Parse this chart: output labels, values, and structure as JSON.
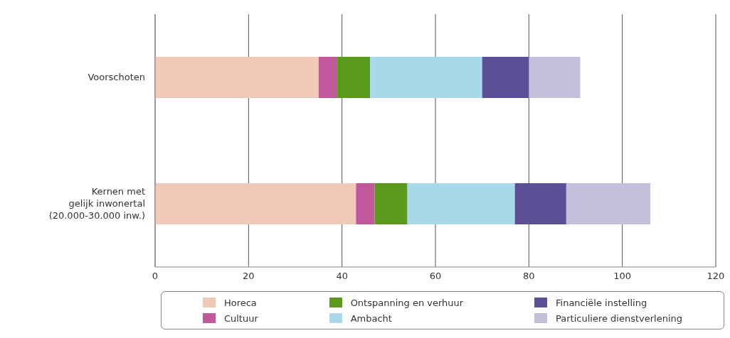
{
  "chart_data": {
    "type": "bar",
    "orientation": "horizontal",
    "stacked": true,
    "categories": [
      "Voorschoten",
      "Kernen met\ngelijk inwonertal\n(20.000-30.000 inw.)"
    ],
    "series": [
      {
        "name": "Horeca",
        "color": "#f2c9b8",
        "values": [
          35,
          43
        ]
      },
      {
        "name": "Cultuur",
        "color": "#c0589a",
        "values": [
          4,
          4
        ]
      },
      {
        "name": "Ontspanning en verhuur",
        "color": "#5a9a1a",
        "values": [
          7,
          7
        ]
      },
      {
        "name": "Ambacht",
        "color": "#a9d8ea",
        "values": [
          24,
          23
        ]
      },
      {
        "name": "Financiële instelling",
        "color": "#5b4f96",
        "values": [
          10,
          11
        ]
      },
      {
        "name": "Particuliere dienstverlening",
        "color": "#c4c0dc",
        "values": [
          11,
          18
        ]
      }
    ],
    "xlim": [
      0,
      120
    ],
    "xticks": [
      0,
      20,
      40,
      60,
      80,
      100,
      120
    ],
    "grid": "x",
    "legend": "bottom"
  }
}
